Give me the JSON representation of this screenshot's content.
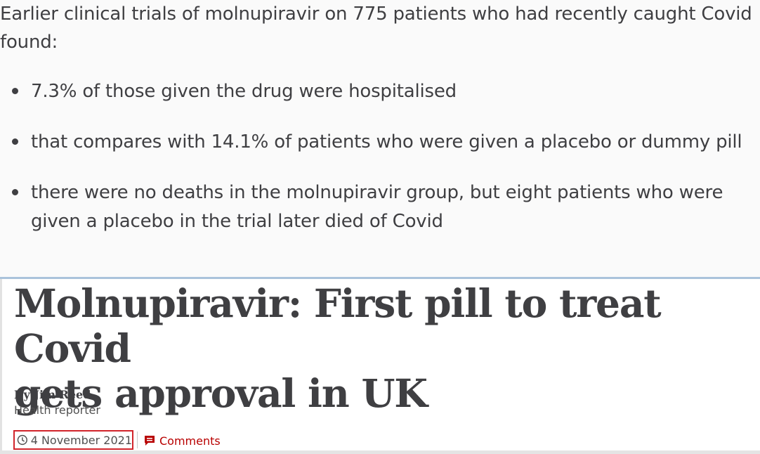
{
  "excerpt": {
    "intro": "Earlier clinical trials of molnupiravir on 775 patients who had recently caught Covid found:",
    "bullets": [
      "7.3% of those given the drug were hospitalised",
      "that compares with 14.1% of patients who were given a placebo or dummy pill",
      "there were no deaths in the molnupiravir group, but eight patients who were given a placebo in the trial later died of Covid"
    ]
  },
  "article": {
    "headline": "Molnupiravir: First pill to treat Covid\ngets approval in UK",
    "byline": {
      "name": "By Jim Reed",
      "role": "Health reporter"
    },
    "date": "4 November 2021",
    "comments_label": "Comments",
    "icons": {
      "date": "clock-icon",
      "comments": "comment-icon"
    }
  },
  "colors": {
    "text": "#3f3f42",
    "accent": "#b80000",
    "highlight_border": "#d1242b",
    "divider": "#aac3db"
  }
}
